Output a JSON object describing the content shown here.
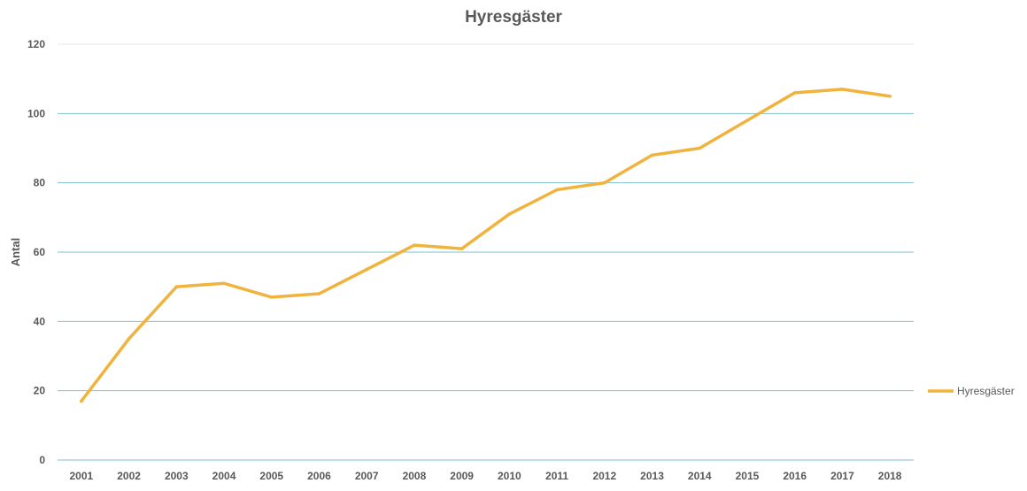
{
  "chart_data": {
    "type": "line",
    "title": "Hyresgäster",
    "xlabel": "",
    "ylabel": "Antal",
    "categories": [
      "2001",
      "2002",
      "2003",
      "2004",
      "2005",
      "2006",
      "2007",
      "2008",
      "2009",
      "2010",
      "2011",
      "2012",
      "2013",
      "2014",
      "2015",
      "2016",
      "2017",
      "2018"
    ],
    "series": [
      {
        "name": "Hyresgäster",
        "color": "#F0B33E",
        "values": [
          17,
          35,
          50,
          51,
          47,
          48,
          55,
          62,
          61,
          71,
          78,
          80,
          88,
          90,
          98,
          106,
          107,
          105
        ]
      }
    ],
    "ylim": [
      0,
      120
    ],
    "yticks": [
      0,
      20,
      40,
      60,
      80,
      100,
      120
    ],
    "grid": true,
    "gridColor": "#7FBFCF",
    "legend": "right"
  }
}
